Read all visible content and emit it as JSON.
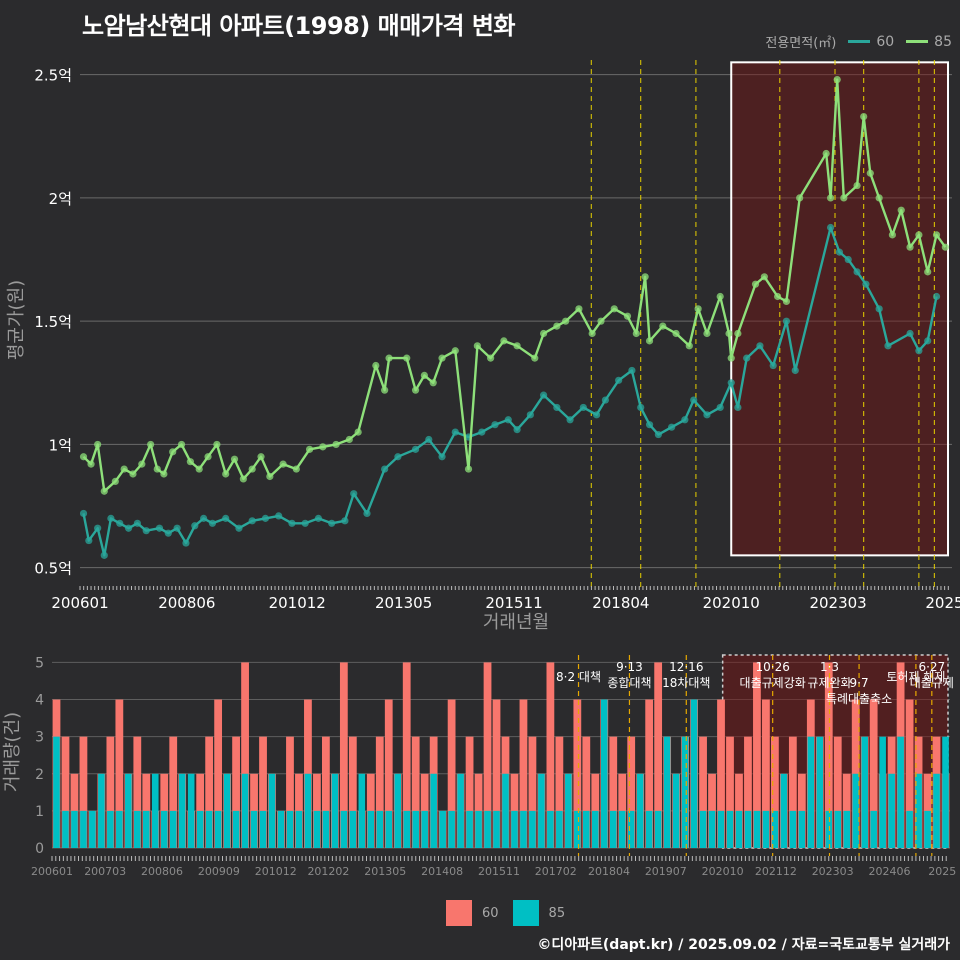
{
  "title": "노암남산현대 아파트(1998) 매매가격 변화",
  "legend_title": "전용면적(㎡)",
  "series_colors": {
    "60": "#2aa79b",
    "85": "#8ee07a"
  },
  "bar_colors": {
    "60": "#f8766d",
    "85": "#00bfc4"
  },
  "footer": "©디아파트(dapt.kr) / 2025.09.02 / 자료=국토교통부 실거래가",
  "chart_data": [
    {
      "type": "line",
      "title": "노암남산현대 아파트(1998) 매매가격 변화",
      "xlabel": "거래년월",
      "ylabel": "평균가(원)",
      "x_ticks": [
        "200601",
        "200806",
        "201012",
        "201305",
        "201511",
        "201804",
        "202010",
        "202303",
        "2025"
      ],
      "y_ticks": [
        {
          "value": 0.5,
          "label": "0.5억"
        },
        {
          "value": 1.0,
          "label": "1억"
        },
        {
          "value": 1.5,
          "label": "1.5억"
        },
        {
          "value": 2.0,
          "label": "2억"
        },
        {
          "value": 2.5,
          "label": "2.5억"
        }
      ],
      "ylim": [
        0.45,
        2.6
      ],
      "xlim": [
        2006.0,
        2025.75
      ],
      "highlight_range": {
        "x": [
          2020.75,
          2025.75
        ],
        "y": [
          0.55,
          2.55
        ]
      },
      "event_lines": [
        2017.58,
        2018.7,
        2019.95,
        2021.85,
        2023.1,
        2023.75,
        2025.0,
        2025.35
      ],
      "series": [
        {
          "name": "60",
          "points": [
            [
              2006.08,
              0.72
            ],
            [
              2006.2,
              0.61
            ],
            [
              2006.4,
              0.66
            ],
            [
              2006.55,
              0.55
            ],
            [
              2006.7,
              0.7
            ],
            [
              2006.9,
              0.68
            ],
            [
              2007.1,
              0.66
            ],
            [
              2007.3,
              0.68
            ],
            [
              2007.5,
              0.65
            ],
            [
              2007.8,
              0.66
            ],
            [
              2008.0,
              0.64
            ],
            [
              2008.2,
              0.66
            ],
            [
              2008.4,
              0.6
            ],
            [
              2008.6,
              0.67
            ],
            [
              2008.8,
              0.7
            ],
            [
              2009.0,
              0.68
            ],
            [
              2009.3,
              0.7
            ],
            [
              2009.6,
              0.66
            ],
            [
              2009.9,
              0.69
            ],
            [
              2010.2,
              0.7
            ],
            [
              2010.5,
              0.71
            ],
            [
              2010.8,
              0.68
            ],
            [
              2011.1,
              0.68
            ],
            [
              2011.4,
              0.7
            ],
            [
              2011.7,
              0.68
            ],
            [
              2012.0,
              0.69
            ],
            [
              2012.2,
              0.8
            ],
            [
              2012.5,
              0.72
            ],
            [
              2012.9,
              0.9
            ],
            [
              2013.2,
              0.95
            ],
            [
              2013.6,
              0.98
            ],
            [
              2013.9,
              1.02
            ],
            [
              2014.2,
              0.95
            ],
            [
              2014.5,
              1.05
            ],
            [
              2014.8,
              1.03
            ],
            [
              2015.1,
              1.05
            ],
            [
              2015.4,
              1.08
            ],
            [
              2015.7,
              1.1
            ],
            [
              2015.9,
              1.06
            ],
            [
              2016.2,
              1.12
            ],
            [
              2016.5,
              1.2
            ],
            [
              2016.8,
              1.15
            ],
            [
              2017.1,
              1.1
            ],
            [
              2017.4,
              1.15
            ],
            [
              2017.7,
              1.12
            ],
            [
              2017.9,
              1.18
            ],
            [
              2018.2,
              1.26
            ],
            [
              2018.5,
              1.3
            ],
            [
              2018.7,
              1.15
            ],
            [
              2018.9,
              1.08
            ],
            [
              2019.1,
              1.04
            ],
            [
              2019.4,
              1.07
            ],
            [
              2019.7,
              1.1
            ],
            [
              2019.9,
              1.18
            ],
            [
              2020.2,
              1.12
            ],
            [
              2020.5,
              1.15
            ],
            [
              2020.75,
              1.25
            ],
            [
              2020.9,
              1.15
            ],
            [
              2021.1,
              1.35
            ],
            [
              2021.4,
              1.4
            ],
            [
              2021.7,
              1.32
            ],
            [
              2022.0,
              1.5
            ],
            [
              2022.2,
              1.3
            ],
            [
              2023.0,
              1.88
            ],
            [
              2023.2,
              1.78
            ],
            [
              2023.4,
              1.75
            ],
            [
              2023.6,
              1.7
            ],
            [
              2023.8,
              1.65
            ],
            [
              2024.1,
              1.55
            ],
            [
              2024.3,
              1.4
            ],
            [
              2024.8,
              1.45
            ],
            [
              2025.0,
              1.38
            ],
            [
              2025.2,
              1.42
            ],
            [
              2025.4,
              1.6
            ]
          ]
        },
        {
          "name": "85",
          "points": [
            [
              2006.08,
              0.95
            ],
            [
              2006.25,
              0.92
            ],
            [
              2006.4,
              1.0
            ],
            [
              2006.55,
              0.81
            ],
            [
              2006.8,
              0.85
            ],
            [
              2007.0,
              0.9
            ],
            [
              2007.2,
              0.88
            ],
            [
              2007.4,
              0.92
            ],
            [
              2007.6,
              1.0
            ],
            [
              2007.75,
              0.9
            ],
            [
              2007.9,
              0.88
            ],
            [
              2008.1,
              0.97
            ],
            [
              2008.3,
              1.0
            ],
            [
              2008.5,
              0.93
            ],
            [
              2008.7,
              0.9
            ],
            [
              2008.9,
              0.95
            ],
            [
              2009.1,
              1.0
            ],
            [
              2009.3,
              0.88
            ],
            [
              2009.5,
              0.94
            ],
            [
              2009.7,
              0.86
            ],
            [
              2009.9,
              0.9
            ],
            [
              2010.1,
              0.95
            ],
            [
              2010.3,
              0.87
            ],
            [
              2010.6,
              0.92
            ],
            [
              2010.9,
              0.9
            ],
            [
              2011.2,
              0.98
            ],
            [
              2011.5,
              0.99
            ],
            [
              2011.8,
              1.0
            ],
            [
              2012.1,
              1.02
            ],
            [
              2012.3,
              1.05
            ],
            [
              2012.7,
              1.32
            ],
            [
              2012.9,
              1.22
            ],
            [
              2013.0,
              1.35
            ],
            [
              2013.4,
              1.35
            ],
            [
              2013.6,
              1.22
            ],
            [
              2013.8,
              1.28
            ],
            [
              2014.0,
              1.25
            ],
            [
              2014.2,
              1.35
            ],
            [
              2014.5,
              1.38
            ],
            [
              2014.8,
              0.9
            ],
            [
              2015.0,
              1.4
            ],
            [
              2015.3,
              1.35
            ],
            [
              2015.6,
              1.42
            ],
            [
              2015.9,
              1.4
            ],
            [
              2016.3,
              1.35
            ],
            [
              2016.5,
              1.45
            ],
            [
              2016.8,
              1.48
            ],
            [
              2017.0,
              1.5
            ],
            [
              2017.3,
              1.55
            ],
            [
              2017.6,
              1.45
            ],
            [
              2017.8,
              1.5
            ],
            [
              2018.1,
              1.55
            ],
            [
              2018.4,
              1.52
            ],
            [
              2018.6,
              1.45
            ],
            [
              2018.8,
              1.68
            ],
            [
              2018.9,
              1.42
            ],
            [
              2019.2,
              1.48
            ],
            [
              2019.5,
              1.45
            ],
            [
              2019.8,
              1.4
            ],
            [
              2020.0,
              1.55
            ],
            [
              2020.2,
              1.45
            ],
            [
              2020.5,
              1.6
            ],
            [
              2020.7,
              1.45
            ],
            [
              2020.75,
              1.35
            ],
            [
              2020.9,
              1.45
            ],
            [
              2021.3,
              1.65
            ],
            [
              2021.5,
              1.68
            ],
            [
              2021.8,
              1.6
            ],
            [
              2022.0,
              1.58
            ],
            [
              2022.3,
              2.0
            ],
            [
              2022.9,
              2.18
            ],
            [
              2023.0,
              2.0
            ],
            [
              2023.15,
              2.48
            ],
            [
              2023.3,
              2.0
            ],
            [
              2023.6,
              2.05
            ],
            [
              2023.75,
              2.33
            ],
            [
              2023.9,
              2.1
            ],
            [
              2024.1,
              2.0
            ],
            [
              2024.4,
              1.85
            ],
            [
              2024.6,
              1.95
            ],
            [
              2024.8,
              1.8
            ],
            [
              2025.0,
              1.85
            ],
            [
              2025.2,
              1.7
            ],
            [
              2025.4,
              1.85
            ],
            [
              2025.6,
              1.8
            ]
          ]
        }
      ]
    },
    {
      "type": "bar",
      "xlabel": "",
      "ylabel": "거래량(건)",
      "x_ticks": [
        "200601",
        "200703",
        "200806",
        "200909",
        "201012",
        "201202",
        "201305",
        "201408",
        "201511",
        "201702",
        "201804",
        "201907",
        "202010",
        "202112",
        "202303",
        "202406",
        "2025"
      ],
      "y_ticks": [
        0,
        1,
        2,
        3,
        4,
        5
      ],
      "ylim": [
        0,
        5.2
      ],
      "highlight_range": [
        2020.75,
        2025.75
      ],
      "annotations": [
        {
          "x": 2017.58,
          "text": "8·2 대책"
        },
        {
          "x": 2018.7,
          "text": "9·13\n종합대책"
        },
        {
          "x": 2019.95,
          "text": "12·16\n18차대책"
        },
        {
          "x": 2021.85,
          "text": "10·26\n대출규제강화"
        },
        {
          "x": 2023.1,
          "text": "1·3\n규제완화"
        },
        {
          "x": 2023.75,
          "text": "9·7\n특례대출축소"
        },
        {
          "x": 2025.0,
          "text": "토허제 해제"
        },
        {
          "x": 2025.35,
          "text": "6·27\n대출규제"
        }
      ],
      "series": [
        {
          "name": "60",
          "values": [
            4,
            3,
            2,
            3,
            1,
            2,
            3,
            4,
            2,
            3,
            2,
            1,
            2,
            3,
            2,
            1,
            2,
            3,
            4,
            2,
            3,
            5,
            2,
            3,
            2,
            1,
            3,
            2,
            4,
            2,
            3,
            2,
            5,
            3,
            1,
            2,
            3,
            4,
            2,
            5,
            3,
            2,
            3,
            1,
            4,
            2,
            3,
            2,
            5,
            4,
            3,
            2,
            4,
            3,
            2,
            5,
            3,
            2,
            4,
            3,
            2,
            4,
            3,
            2,
            3,
            2,
            4,
            5,
            3,
            2,
            3,
            4,
            3,
            2,
            4,
            3,
            2,
            3,
            5,
            4,
            3,
            2,
            3,
            2,
            4,
            3,
            5,
            3,
            2,
            4,
            3,
            4,
            2,
            3,
            5,
            4,
            3,
            2,
            3,
            2
          ]
        },
        {
          "name": "85",
          "values": [
            3,
            1,
            1,
            1,
            1,
            2,
            1,
            1,
            2,
            1,
            1,
            2,
            1,
            1,
            2,
            2,
            1,
            1,
            1,
            2,
            1,
            2,
            1,
            1,
            2,
            1,
            1,
            1,
            2,
            1,
            1,
            2,
            1,
            1,
            2,
            1,
            1,
            1,
            2,
            1,
            1,
            1,
            2,
            1,
            1,
            2,
            1,
            1,
            1,
            1,
            2,
            1,
            1,
            1,
            2,
            1,
            1,
            2,
            1,
            1,
            1,
            4,
            1,
            1,
            1,
            2,
            1,
            1,
            3,
            2,
            3,
            4,
            1,
            1,
            1,
            1,
            1,
            1,
            1,
            1,
            1,
            2,
            1,
            1,
            3,
            3,
            1,
            1,
            1,
            2,
            3,
            1,
            3,
            2,
            3,
            1,
            2,
            1,
            2,
            3
          ]
        }
      ]
    }
  ]
}
